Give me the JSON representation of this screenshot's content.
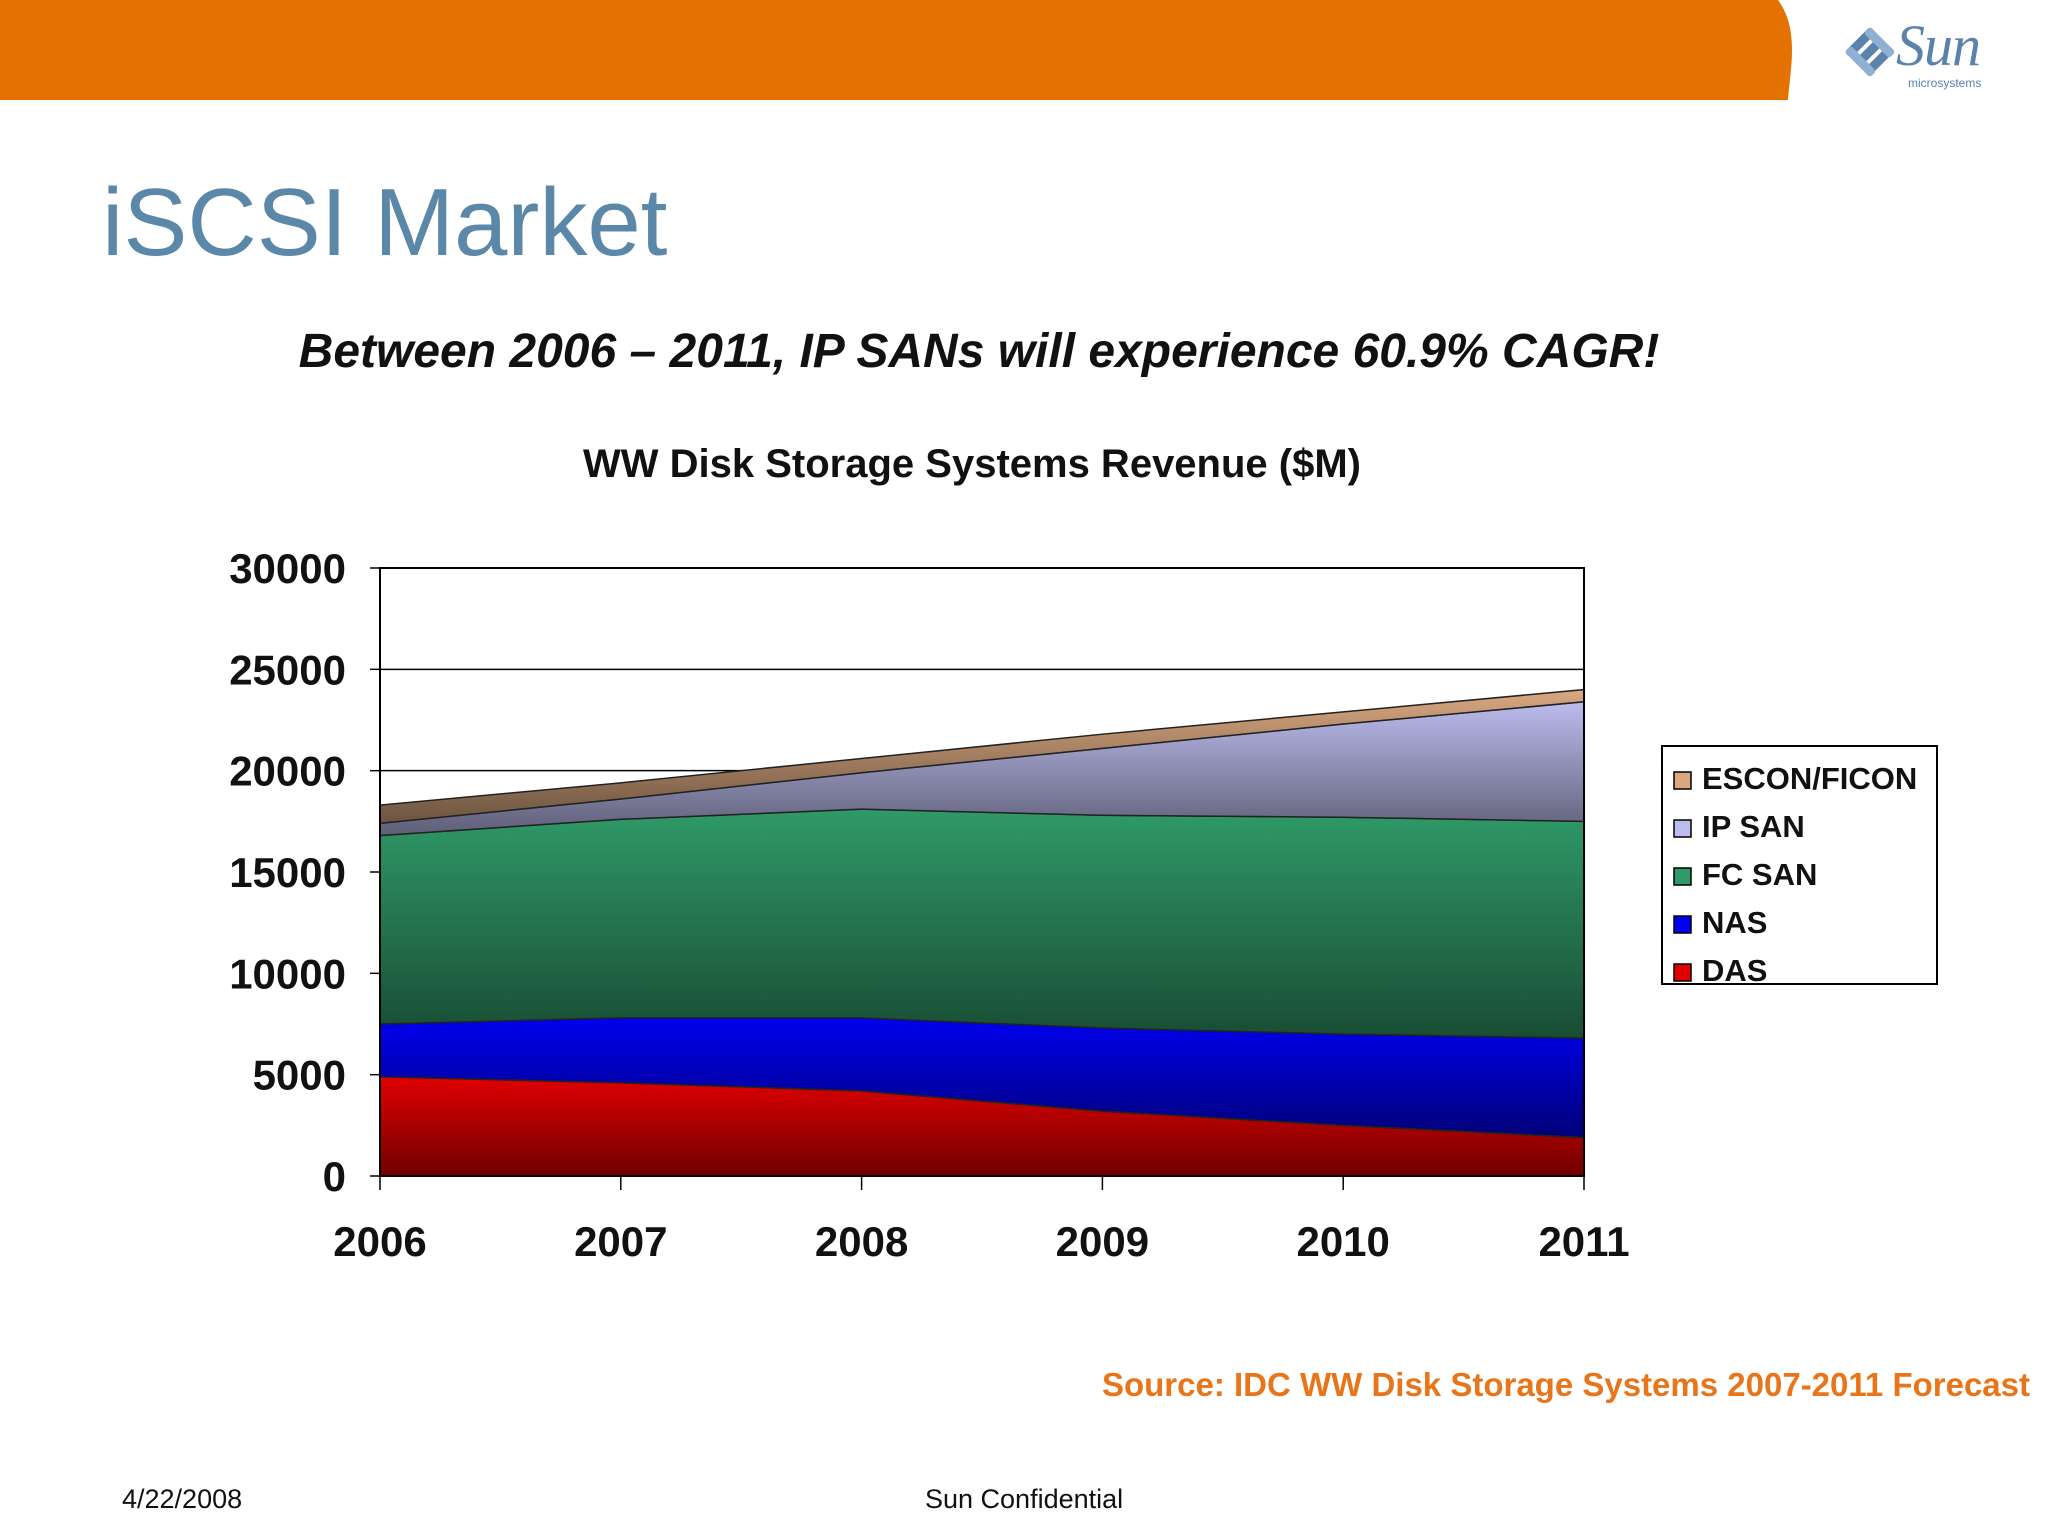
{
  "slide": {
    "title": "iSCSI Market",
    "subtitle": "Between 2006 – 2011, IP SANs will experience 60.9% CAGR!",
    "source": "Source: IDC WW Disk Storage Systems 2007-2011 Forecast",
    "footer_date": "4/22/2008",
    "footer_text": "Sun Confidential",
    "logo_text": "Sun",
    "logo_subtext": "microsystems",
    "accent_color": "#e57200"
  },
  "chart_data": {
    "type": "area",
    "stacked": true,
    "title": "WW Disk Storage Systems Revenue ($M)",
    "xlabel": "",
    "ylabel": "",
    "x": [
      "2006",
      "2007",
      "2008",
      "2009",
      "2010",
      "2011"
    ],
    "ylim": [
      0,
      30000
    ],
    "yticks": [
      "0",
      "5000",
      "10000",
      "15000",
      "20000",
      "25000",
      "30000"
    ],
    "grid": true,
    "legend_position": "right",
    "series": [
      {
        "name": "DAS",
        "color": "#e00000",
        "values": [
          4900,
          4600,
          4200,
          3200,
          2500,
          1900
        ]
      },
      {
        "name": "NAS",
        "color": "#0000f0",
        "values": [
          2600,
          3200,
          3600,
          4100,
          4500,
          4900
        ]
      },
      {
        "name": "FC SAN",
        "color": "#2f9a68",
        "values": [
          9300,
          9800,
          10300,
          10500,
          10700,
          10700
        ]
      },
      {
        "name": "IP SAN",
        "color": "#bcbcee",
        "values": [
          600,
          1000,
          1800,
          3300,
          4600,
          5900
        ]
      },
      {
        "name": "ESCON/FICON",
        "color": "#d9a880",
        "values": [
          900,
          800,
          700,
          700,
          600,
          600
        ]
      }
    ]
  }
}
